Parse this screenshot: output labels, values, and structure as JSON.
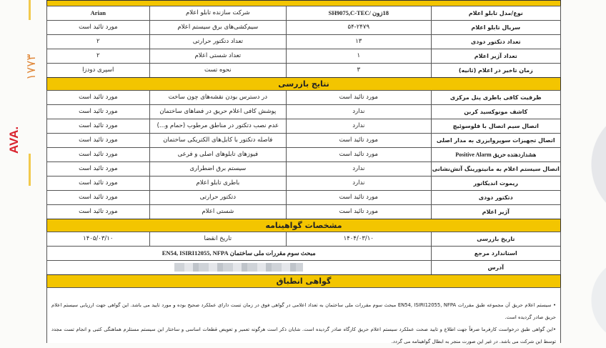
{
  "margin": {
    "registration_prefix": "AVA.",
    "registration_number": "۱۷۷۳"
  },
  "colors": {
    "header_band": "#f3c500",
    "stamp_red": "#d9232e",
    "stamp_orange": "#e0883a"
  },
  "system_info": {
    "rows": [
      [
        "نوع/مدل تابلو اعلام",
        "18زون /SH9075,C-TEC",
        "شرکت سازنده تابلو اعلام",
        "Arian"
      ],
      [
        "سریال تابلو اعلام",
        "۵۴-۲۴۷۹",
        "سیم‌کشی‌های برق سیستم اعلام",
        "مورد تائید است"
      ],
      [
        "تعداد دتکتور دودی",
        "۱۳",
        "تعداد دتکتور حرارتی",
        "۲"
      ],
      [
        "تعداد آژیر اعلام",
        "۱",
        "تعداد شستی اعلام",
        "۲"
      ],
      [
        "زمان تاخیر در اعلام (ثانیه)",
        "۳",
        "نحوه تست",
        "اسپری دودزا"
      ]
    ]
  },
  "inspection": {
    "title": "نتایج بازرسی",
    "rows": [
      [
        "ظرفیت کافی باطری پنل مرکزی",
        "مورد تائید است",
        "در دسترس بودن نقشه‌های چون ساخت",
        "مورد تائید است"
      ],
      [
        "کاشف مونوکسید کربن",
        "ندارد",
        "پوشش کافی اعلام حریق در فضاهای ساختمان",
        "مورد تائید است"
      ],
      [
        "اتصال سیم اتصال با فلوسوئیچ",
        "ندارد",
        "عدم نصب دتکتور در مناطق مرطوب (حمام و...)",
        "مورد تائید است"
      ],
      [
        "اتصال تجهیزات سوپروایزری به مدار اصلی",
        "مورد تائید است",
        "فاصله دتکتور با کابل‌های الکتریکی ساختمان",
        "مورد تائید است"
      ],
      [
        "هشداردهنده حریق Positive Alarm",
        "مورد تائید است",
        "فیوزهای تابلوهای اصلی و فرعی",
        "مورد تائید است"
      ],
      [
        "اتصال سیستم اعلام به مانیتورینگ آتش‌نشانی",
        "ندارد",
        "سیستم برق اضطراری",
        "مورد تائید است"
      ],
      [
        "ریموت اندیکاتور",
        "ندارد",
        "باطری تابلو اعلام",
        "مورد تائید است"
      ],
      [
        "دتکتور دودی",
        "مورد تائید است",
        "دتکتور حرارتی",
        "مورد تائید است"
      ],
      [
        "آژیر اعلام",
        "مورد تائید است",
        "شستی اعلام",
        "مورد تائید است"
      ]
    ]
  },
  "certificate": {
    "title": "مشخصات گواهینامه",
    "inspection_date_label": "تاریخ بازرسی",
    "inspection_date": "۱۴۰۴/۰۳/۱۰",
    "expiry_label": "تاریخ انقضا",
    "expiry_date": "۱۴۰۵/۰۳/۱۰",
    "standard_label": "استاندارد مرجع",
    "standard": "مبحث سوم مقررات ملی ساختمان EN54, ISIRI12055, NFPA",
    "address_label": "آدرس"
  },
  "compliance": {
    "title": "گواهی انطباق",
    "para1": "• سیستم اعلام حریق آن مجموعه طبق مقررات EN54, ISIRI12055, NFPA مبحث سوم مقررات ملی ساختمان به تعداد اعلامی در گواهی فوق در زمان تست دارای عملکرد صحیح بوده و مورد تایید می باشد. این گواهی جهت ارزیابی سیستم اعلام حریق صادر گردیده است.",
    "para2": "•این گواهی طبق درخواست کارفرما صرفاً جهت اطلاع و تایید صحت عملکرد سیستم اعلام حریق کارگاه صادر گردیده است. شایان ذکر است هرگونه تعمیر و تعویض قطعات اساسی و ساختار این سیستم مستلزم هماهنگی کتبی و انجام تست مجدد توسط این شرکت می باشد. در غیر این صورت منجر به ابطال گواهینامه می گردد."
  }
}
